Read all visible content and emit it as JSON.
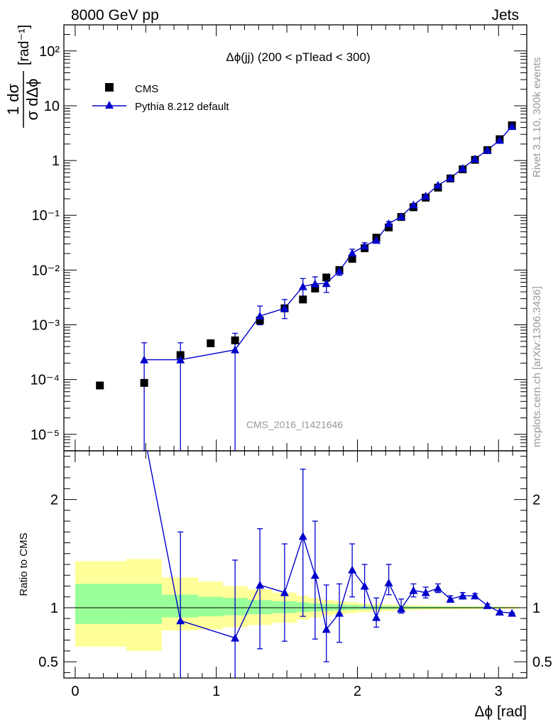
{
  "header": {
    "left": "8000 GeV pp",
    "right": "Jets"
  },
  "side_labels": {
    "top": "Rivet 3.1.10,  300k events",
    "bottom": "mcplots.cern.ch [arXiv:1306.3436]"
  },
  "watermark": "CMS_2016_I1421646",
  "chart_data": [
    {
      "type": "scatter",
      "title": "Δϕ(jj) (200 < pTlead <  300)",
      "ylabel_num": "1 dσ",
      "ylabel_den": "σ dΔϕ",
      "ylabel_unit": "[rad⁻¹]",
      "yscale": "log",
      "ylim": [
        5e-06,
        300
      ],
      "xlim": [
        -0.08,
        3.2
      ],
      "yticks": [
        {
          "value": 1e-05,
          "label": "10⁻⁵"
        },
        {
          "value": 0.0001,
          "label": "10⁻⁴"
        },
        {
          "value": 0.001,
          "label": "10⁻³"
        },
        {
          "value": 0.01,
          "label": "10⁻²"
        },
        {
          "value": 0.1,
          "label": "10⁻¹"
        },
        {
          "value": 1,
          "label": "1"
        },
        {
          "value": 10,
          "label": "10"
        },
        {
          "value": 100,
          "label": "10²"
        }
      ],
      "legend": [
        {
          "name": "CMS",
          "marker": "square",
          "color": "#000000"
        },
        {
          "name": "Pythia 8.212 default",
          "marker": "triangle",
          "color": "#0000cc"
        }
      ],
      "series": [
        {
          "name": "CMS",
          "x": [
            0.175,
            0.489,
            0.746,
            0.96,
            1.133,
            1.309,
            1.484,
            1.614,
            1.7,
            1.78,
            1.872,
            1.963,
            2.051,
            2.134,
            2.222,
            2.31,
            2.397,
            2.484,
            2.571,
            2.659,
            2.746,
            2.833,
            2.921,
            3.008,
            3.095
          ],
          "y": [
            7.8e-05,
            8.7e-05,
            0.00028,
            0.00046,
            0.00052,
            0.0012,
            0.002,
            0.0029,
            0.0046,
            0.0073,
            0.01,
            0.016,
            0.025,
            0.039,
            0.06,
            0.093,
            0.14,
            0.21,
            0.32,
            0.47,
            0.69,
            1.03,
            1.55,
            2.45,
            4.4
          ]
        },
        {
          "name": "Pythia 8.212 default",
          "x": [
            0.489,
            0.746,
            1.133,
            1.309,
            1.484,
            1.614,
            1.7,
            1.78,
            1.872,
            1.963,
            2.051,
            2.134,
            2.222,
            2.31,
            2.397,
            2.484,
            2.571,
            2.659,
            2.746,
            2.833,
            2.921,
            3.008,
            3.095
          ],
          "y": [
            0.00023,
            0.00023,
            0.00035,
            0.00145,
            0.002,
            0.005,
            0.0056,
            0.0057,
            0.0096,
            0.0205,
            0.0275,
            0.035,
            0.07,
            0.095,
            0.155,
            0.225,
            0.355,
            0.48,
            0.72,
            1.07,
            1.55,
            2.35,
            4.2
          ],
          "err_lo": [
            5e-06,
            5e-06,
            5e-06,
            0.001,
            0.0013,
            0.0033,
            0.004,
            0.0039,
            0.008,
            0.0165,
            0.024,
            0.031,
            0.063,
            0.089,
            0.147,
            0.215,
            0.345,
            0.47,
            0.705,
            1.05,
            1.53,
            2.33,
            4.15
          ],
          "err_hi": [
            0.00047,
            0.00047,
            0.0007,
            0.0022,
            0.0029,
            0.007,
            0.0075,
            0.0075,
            0.0115,
            0.024,
            0.0315,
            0.039,
            0.077,
            0.101,
            0.163,
            0.235,
            0.365,
            0.49,
            0.735,
            1.09,
            1.57,
            2.37,
            4.25
          ]
        }
      ]
    },
    {
      "type": "scatter",
      "ylabel": "Ratio to CMS",
      "ylim": [
        0.35,
        2.45
      ],
      "xlim": [
        -0.08,
        3.2
      ],
      "xlabel": "Δϕ [rad]",
      "xticks": [
        {
          "value": 0,
          "label": "0"
        },
        {
          "value": 1,
          "label": "1"
        },
        {
          "value": 2,
          "label": "2"
        },
        {
          "value": 3,
          "label": "3"
        }
      ],
      "yticks": [
        {
          "value": 0.5,
          "label": "0.5"
        },
        {
          "value": 1,
          "label": "1"
        },
        {
          "value": 2,
          "label": "2"
        }
      ],
      "bands": {
        "edges": [
          0.0,
          0.363,
          0.614,
          0.873,
          1.047,
          1.222,
          1.396,
          1.571,
          1.658,
          1.745,
          1.833,
          1.92,
          2.007,
          2.094,
          2.182,
          2.269,
          2.356,
          2.443,
          2.531,
          2.618,
          2.705,
          2.793,
          2.88,
          2.967,
          3.054,
          3.142
        ],
        "yellow_lo": [
          0.64,
          0.6,
          0.79,
          0.8,
          0.82,
          0.84,
          0.86,
          0.89,
          0.91,
          0.93,
          0.94,
          0.95,
          0.96,
          0.965,
          0.97,
          0.975,
          0.978,
          0.98,
          0.982,
          0.984,
          0.985,
          0.986,
          0.987,
          0.988,
          0.989
        ],
        "yellow_hi": [
          1.43,
          1.45,
          1.28,
          1.24,
          1.2,
          1.17,
          1.14,
          1.11,
          1.09,
          1.07,
          1.06,
          1.05,
          1.04,
          1.035,
          1.03,
          1.025,
          1.022,
          1.02,
          1.018,
          1.016,
          1.015,
          1.014,
          1.013,
          1.012,
          1.011
        ],
        "green_lo": [
          0.85,
          0.85,
          0.91,
          0.92,
          0.93,
          0.94,
          0.95,
          0.96,
          0.965,
          0.97,
          0.975,
          0.98,
          0.983,
          0.985,
          0.987,
          0.989,
          0.99,
          0.991,
          0.992,
          0.993,
          0.994,
          0.994,
          0.995,
          0.995,
          0.996
        ],
        "green_hi": [
          1.22,
          1.22,
          1.12,
          1.1,
          1.09,
          1.07,
          1.06,
          1.05,
          1.04,
          1.035,
          1.03,
          1.025,
          1.02,
          1.018,
          1.016,
          1.014,
          1.012,
          1.011,
          1.01,
          1.009,
          1.008,
          1.008,
          1.007,
          1.006,
          1.005
        ],
        "colors": {
          "yellow": "#ffff99",
          "green": "#99ff99"
        }
      },
      "series": [
        {
          "name": "Pythia 8.212 default",
          "x": [
            0.746,
            1.133,
            1.309,
            1.484,
            1.614,
            1.7,
            1.78,
            1.872,
            1.963,
            2.051,
            2.134,
            2.222,
            2.31,
            2.397,
            2.484,
            2.571,
            2.659,
            2.746,
            2.833,
            2.921,
            3.008,
            3.095
          ],
          "y": [
            0.88,
            0.72,
            1.21,
            1.14,
            1.66,
            1.3,
            0.8,
            0.95,
            1.35,
            1.2,
            0.91,
            1.23,
            0.99,
            1.16,
            1.14,
            1.18,
            1.08,
            1.11,
            1.11,
            1.02,
            0.96,
            0.95
          ],
          "err_lo": [
            0.0,
            0.0,
            0.62,
            0.69,
            0.92,
            0.71,
            0.5,
            0.68,
            1.1,
            1.0,
            0.82,
            1.12,
            0.95,
            1.1,
            1.09,
            1.14,
            1.05,
            1.08,
            1.09,
            1.005,
            0.95,
            0.945
          ],
          "err_hi": [
            1.7,
            1.44,
            1.73,
            1.59,
            2.28,
            1.8,
            1.21,
            1.22,
            1.59,
            1.4,
            1.09,
            1.4,
            1.08,
            1.22,
            1.19,
            1.22,
            1.11,
            1.14,
            1.13,
            1.035,
            0.97,
            0.955
          ]
        }
      ],
      "offscale_segment": {
        "from_x": 0.489,
        "from_y": 2.6,
        "to_x": 0.746,
        "to_y": 0.88
      }
    }
  ]
}
